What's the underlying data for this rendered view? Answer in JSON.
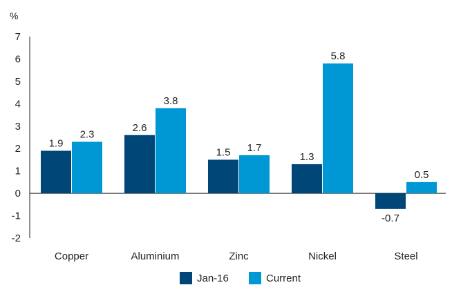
{
  "chart_data": {
    "type": "bar",
    "unit_label": "%",
    "categories": [
      "Copper",
      "Aluminium",
      "Zinc",
      "Nickel",
      "Steel"
    ],
    "series": [
      {
        "name": "Jan-16",
        "values": [
          1.9,
          2.6,
          1.5,
          1.3,
          -0.7
        ],
        "color": "#004778"
      },
      {
        "name": "Current",
        "values": [
          2.3,
          3.8,
          1.7,
          5.8,
          0.5
        ],
        "color": "#0098d4"
      }
    ],
    "ylim": [
      -2,
      7
    ],
    "yticks": [
      "-2",
      "-1",
      "0",
      "1",
      "2",
      "3",
      "4",
      "5",
      "6",
      "7"
    ],
    "grid": false,
    "legend_position": "bottom-center"
  }
}
